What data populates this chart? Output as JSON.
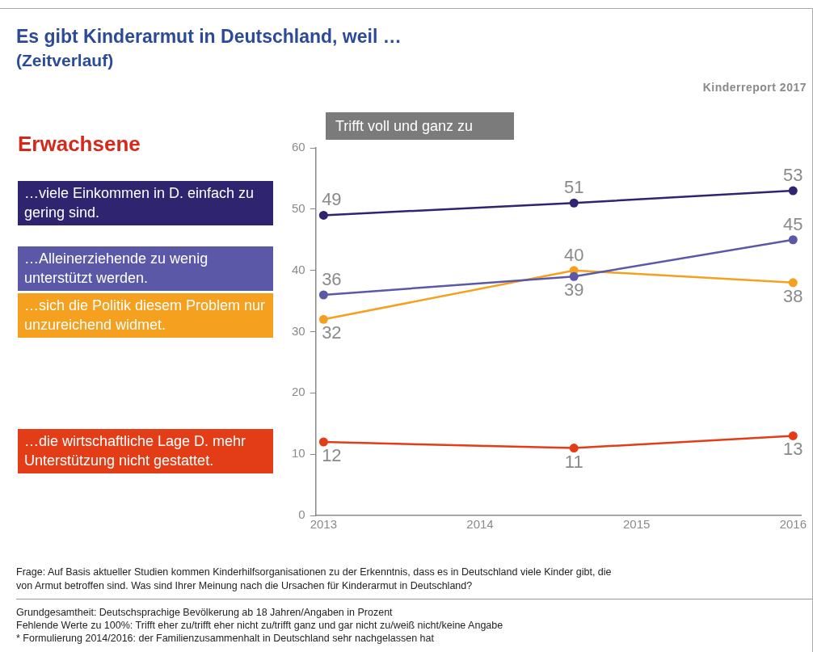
{
  "chart_data": {
    "type": "line",
    "title": "Es gibt Kinderarmut in Deutschland, weil …",
    "subtitle": "(Zeitverlauf)",
    "legend_title": "Erwachsene",
    "x": [
      2013,
      2014.6,
      2016
    ],
    "series": [
      {
        "name": "…viele Einkommen in D. einfach zu gering sind.",
        "color": "#2e2470",
        "values": [
          49,
          51,
          53
        ]
      },
      {
        "name": "…Alleinerziehende zu wenig unterstützt werden.",
        "color": "#5b58a8",
        "values": [
          36,
          39,
          45
        ]
      },
      {
        "name": "…sich die Politik diesem Problem nur unzureichend widmet.",
        "color": "#f5a01f",
        "values": [
          32,
          40,
          38
        ]
      },
      {
        "name": "…die wirtschaftliche Lage D. mehr Unterstützung nicht gestattet.",
        "color": "#e33d18",
        "values": [
          12,
          11,
          13
        ]
      }
    ],
    "xlim": [
      2012.95,
      2016.05
    ],
    "xticks": [
      2013,
      2014,
      2015,
      2016
    ],
    "ylim": [
      0,
      60
    ],
    "yticks": [
      0,
      10,
      20,
      30,
      40,
      50,
      60
    ],
    "grid": false,
    "legend": "left",
    "marker": "circle",
    "line_style": "solid",
    "data_labels": true,
    "annotations": [
      "Kinderreport 2017",
      "Trifft voll und ganz zu",
      "Frage: Auf Basis aktueller Studien kommen Kinderhilfsorganisationen zu der Erkenntnis, dass es in Deutschland viele Kinder gibt, die von Armut betroffen sind. Was sind Ihrer Meinung nach die Ursachen für Kinderarmut in Deutschland?",
      "Grundgesamtheit: Deutschsprachige Bevölkerung ab 18 Jahren/Angaben in Prozent",
      "Fehlende Werte zu 100%: Trifft eher zu/trifft eher nicht zu/trifft ganz und gar nicht zu/weiß nicht/keine Angabe",
      "* Formulierung 2014/2016: der Familienzusammenhalt in Deutschland sehr nachgelassen hat"
    ]
  }
}
